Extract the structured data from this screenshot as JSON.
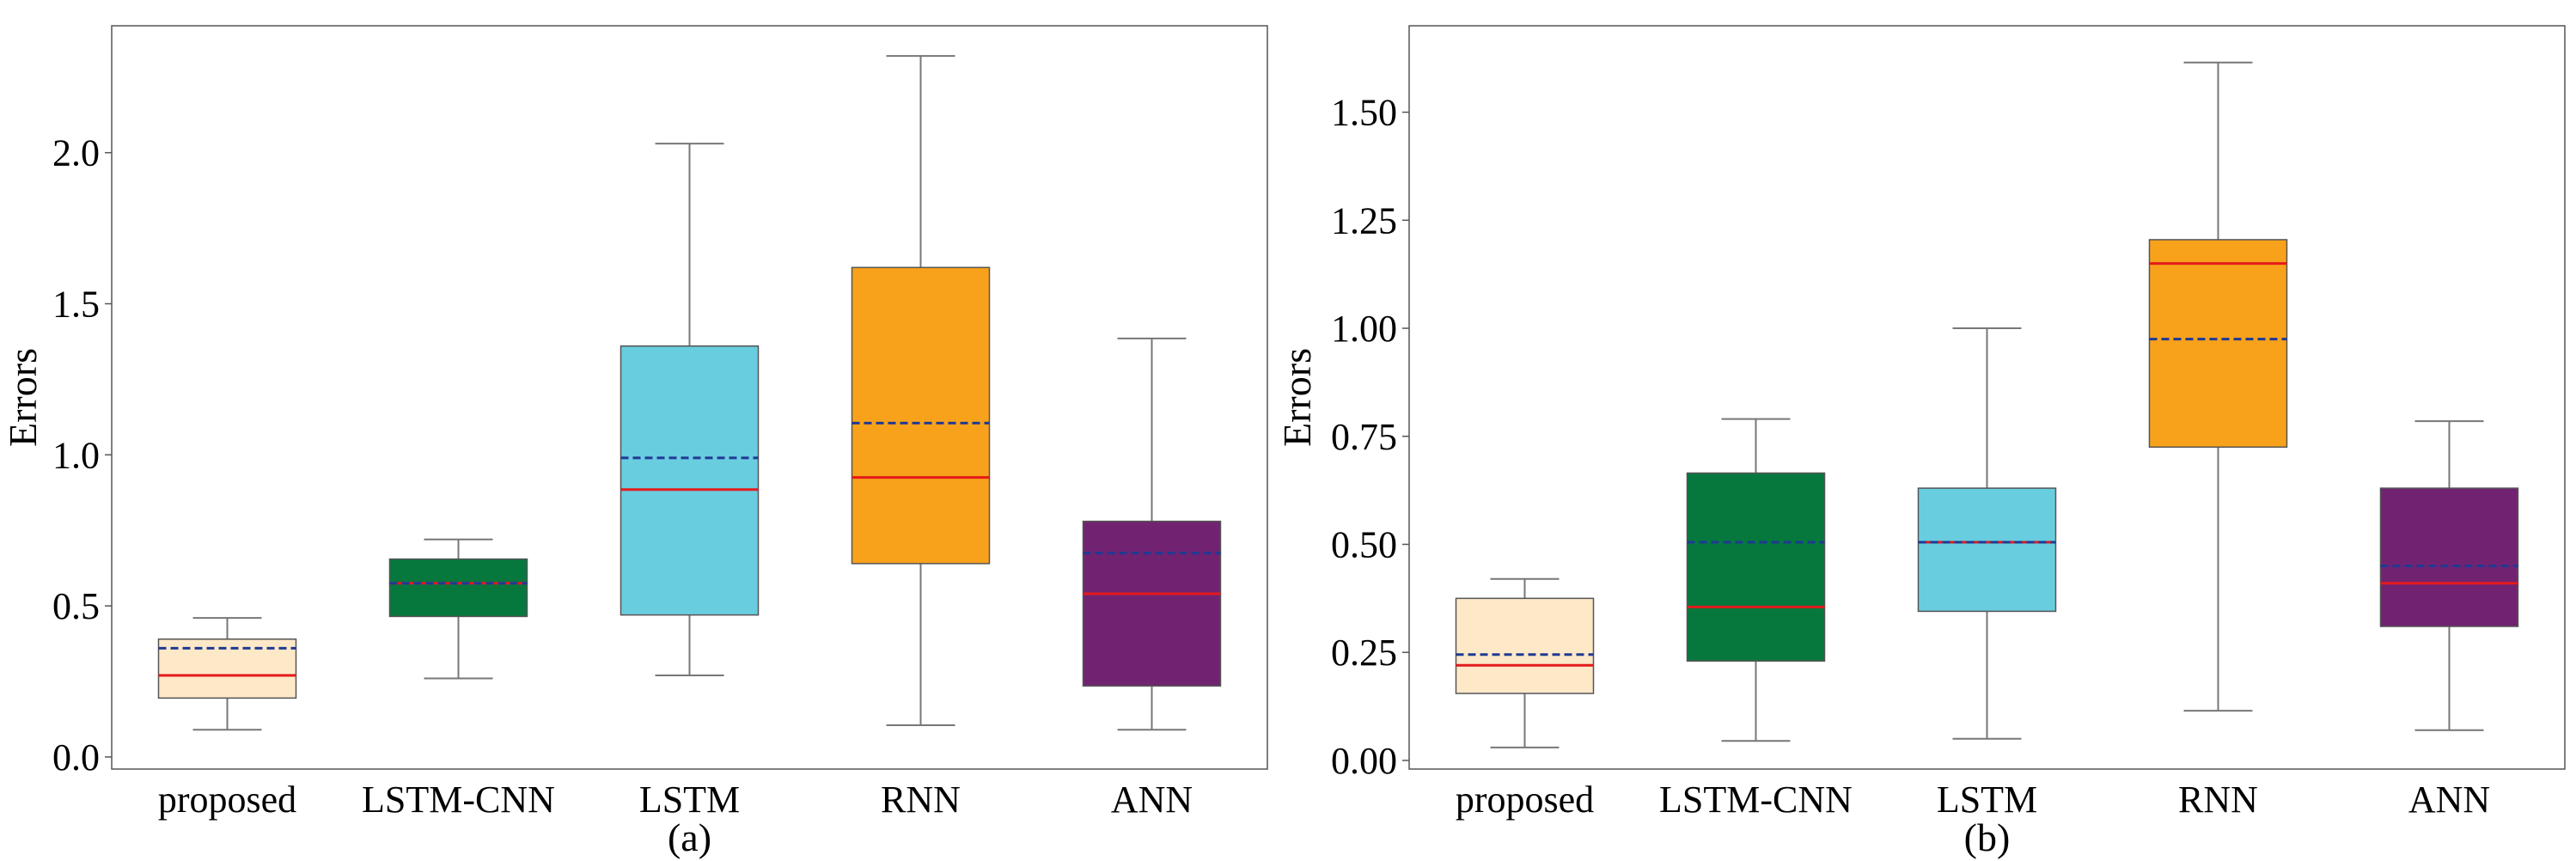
{
  "chart_data": [
    {
      "type": "box",
      "caption": "(a)",
      "ylabel": "Errors",
      "xlabel": "",
      "ylim": [
        -0.04,
        2.42
      ],
      "yticks": [
        0.0,
        0.5,
        1.0,
        1.5,
        2.0
      ],
      "ytick_labels": [
        "0.0",
        "0.5",
        "1.0",
        "1.5",
        "2.0"
      ],
      "categories": [
        "proposed",
        "LSTM-CNN",
        "LSTM",
        "RNN",
        "ANN"
      ],
      "colors": [
        "#FDE8C8",
        "#06783E",
        "#69CDE0",
        "#F8A21B",
        "#712371"
      ],
      "median_color": "#E31A1C",
      "mean_color": "#1F3A93",
      "boxes": [
        {
          "whislo": 0.09,
          "q1": 0.195,
          "med": 0.27,
          "mean": 0.36,
          "q3": 0.39,
          "whishi": 0.46
        },
        {
          "whislo": 0.26,
          "q1": 0.465,
          "med": 0.575,
          "mean": 0.575,
          "q3": 0.655,
          "whishi": 0.72
        },
        {
          "whislo": 0.27,
          "q1": 0.47,
          "med": 0.885,
          "mean": 0.99,
          "q3": 1.36,
          "whishi": 2.03
        },
        {
          "whislo": 0.105,
          "q1": 0.64,
          "med": 0.925,
          "mean": 1.105,
          "q3": 1.62,
          "whishi": 2.32
        },
        {
          "whislo": 0.09,
          "q1": 0.235,
          "med": 0.54,
          "mean": 0.675,
          "q3": 0.78,
          "whishi": 1.385
        }
      ]
    },
    {
      "type": "box",
      "caption": "(b)",
      "ylabel": "Errors",
      "xlabel": "",
      "ylim": [
        -0.02,
        1.7
      ],
      "yticks": [
        0.0,
        0.25,
        0.5,
        0.75,
        1.0,
        1.25,
        1.5
      ],
      "ytick_labels": [
        "0.00",
        "0.25",
        "0.50",
        "0.75",
        "1.00",
        "1.25",
        "1.50"
      ],
      "categories": [
        "proposed",
        "LSTM-CNN",
        "LSTM",
        "RNN",
        "ANN"
      ],
      "colors": [
        "#FDE8C8",
        "#06783E",
        "#69CDE0",
        "#F8A21B",
        "#712371"
      ],
      "median_color": "#E31A1C",
      "mean_color": "#1F3A93",
      "boxes": [
        {
          "whislo": 0.03,
          "q1": 0.155,
          "med": 0.22,
          "mean": 0.245,
          "q3": 0.375,
          "whishi": 0.42
        },
        {
          "whislo": 0.045,
          "q1": 0.23,
          "med": 0.355,
          "mean": 0.505,
          "q3": 0.665,
          "whishi": 0.79
        },
        {
          "whislo": 0.05,
          "q1": 0.345,
          "med": 0.505,
          "mean": 0.505,
          "q3": 0.63,
          "whishi": 1.0
        },
        {
          "whislo": 0.115,
          "q1": 0.725,
          "med": 1.15,
          "mean": 0.975,
          "q3": 1.205,
          "whishi": 1.615
        },
        {
          "whislo": 0.07,
          "q1": 0.31,
          "med": 0.41,
          "mean": 0.45,
          "q3": 0.63,
          "whishi": 0.785
        }
      ]
    }
  ]
}
